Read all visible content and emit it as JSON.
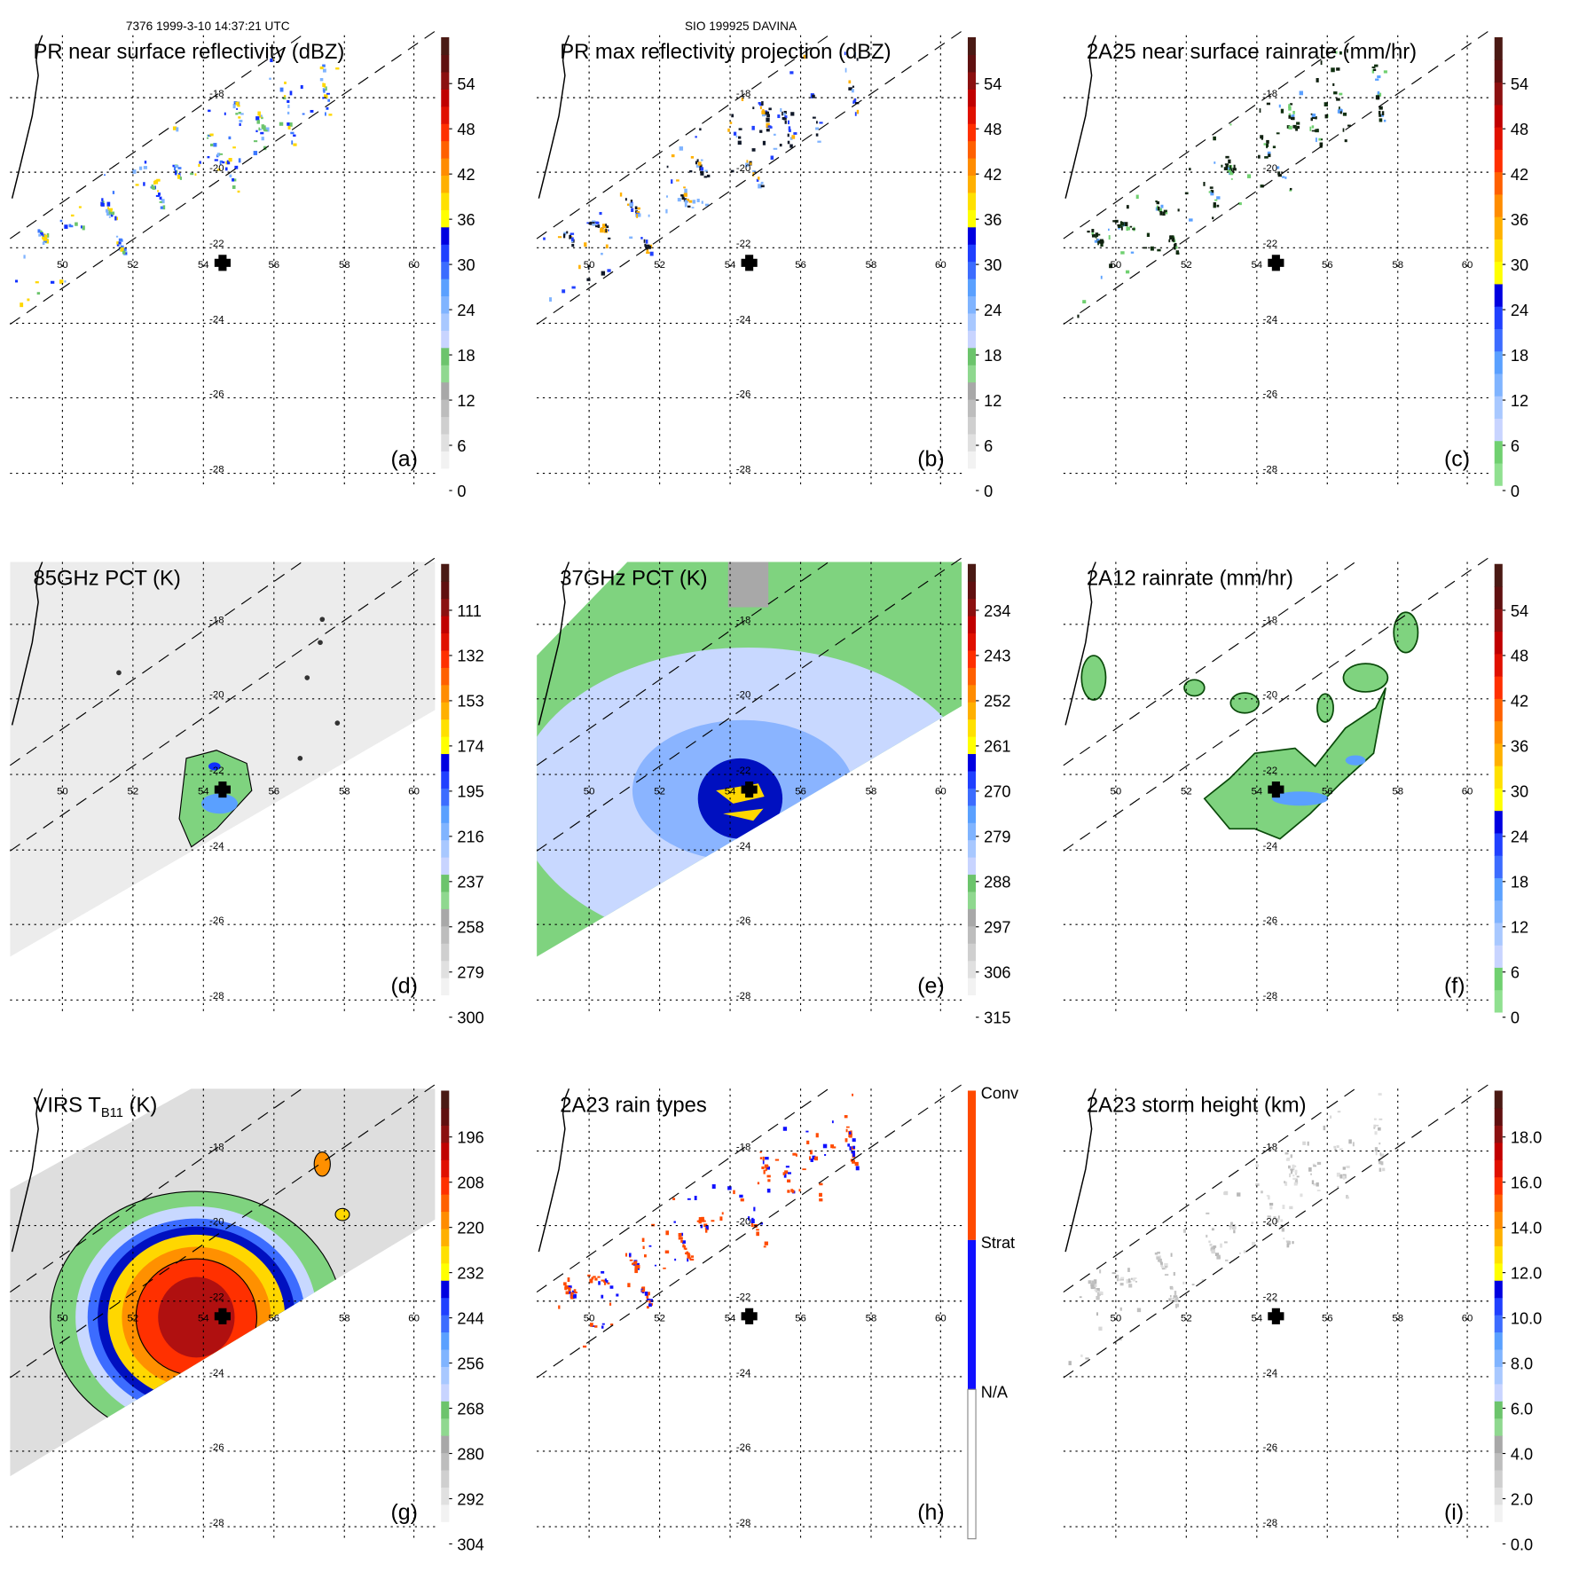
{
  "header": {
    "orbit_time": "7376 1999-3-10 14:37:21 UTC",
    "storm": "SIO 199925 DAVINA"
  },
  "lon_labels": [
    "50",
    "52",
    "54",
    "56",
    "58",
    "60"
  ],
  "lat_labels": [
    "-18",
    "-20",
    "-22",
    "-24",
    "-26",
    "-28"
  ],
  "palettes": {
    "dbz": [
      "#ffffff",
      "#f2f2f2",
      "#e0e0e0",
      "#cfcfcf",
      "#bdbdbd",
      "#a8a8a8",
      "#8fd88f",
      "#6cc46c",
      "#c8d4ff",
      "#a8c8ff",
      "#80b4ff",
      "#5aa0ff",
      "#3c6cff",
      "#2040ff",
      "#0000e0",
      "#ffff00",
      "#ffe000",
      "#ffb000",
      "#ff8c00",
      "#ff6000",
      "#ff3000",
      "#e01000",
      "#c00000",
      "#8b1010",
      "#601010",
      "#4a1a14"
    ],
    "rain": [
      "#90e090",
      "#70d070",
      "#c8d4ff",
      "#a8c8ff",
      "#80b4ff",
      "#5aa0ff",
      "#3c6cff",
      "#2040ff",
      "#0000e0",
      "#ffff00",
      "#ffe000",
      "#ffb000",
      "#ff8c00",
      "#ff6000",
      "#ff3000",
      "#e01000",
      "#c00000",
      "#8b1010",
      "#601010",
      "#4a1a14"
    ],
    "types": [
      "#ffffff",
      "#1010ff",
      "#ff4a00"
    ]
  },
  "panels": [
    {
      "letter": "(a)",
      "title": "PR near surface reflectivity (dBZ)",
      "palette": "dbz",
      "ticks": [
        "54",
        "48",
        "42",
        "36",
        "30",
        "24",
        "18",
        "12",
        "6",
        "0"
      ],
      "field": "scatter",
      "marks": [
        "#1030ff",
        "#3c78ff",
        "#80b4ff",
        "#6cc46c",
        "#ffd700"
      ]
    },
    {
      "letter": "(b)",
      "title": "PR max reflectivity projection (dBZ)",
      "palette": "dbz",
      "ticks": [
        "54",
        "48",
        "42",
        "36",
        "30",
        "24",
        "18",
        "12",
        "6",
        "0"
      ],
      "field": "scatter",
      "marks": [
        "#101828",
        "#101828",
        "#2040ff",
        "#80b4ff",
        "#ffb000"
      ]
    },
    {
      "letter": "(c)",
      "title": "2A25 near surface rainrate (mm/hr)",
      "palette": "rain",
      "ticks": [
        "54",
        "48",
        "42",
        "36",
        "30",
        "24",
        "18",
        "12",
        "6",
        "0"
      ],
      "field": "scatter",
      "marks": [
        "#102010",
        "#103010",
        "#70d070",
        "#102010",
        "#5aa0ff"
      ]
    },
    {
      "letter": "(d)",
      "title": "85GHz PCT (K)",
      "palette": "dbz",
      "ticks": [
        "111",
        "132",
        "153",
        "174",
        "195",
        "216",
        "237",
        "258",
        "279",
        "300"
      ],
      "field": "pct85"
    },
    {
      "letter": "(e)",
      "title": "37GHz PCT (K)",
      "palette": "dbz",
      "ticks": [
        "234",
        "243",
        "252",
        "261",
        "270",
        "279",
        "288",
        "297",
        "306",
        "315"
      ],
      "field": "pct37"
    },
    {
      "letter": "(f)",
      "title": "2A12 rainrate (mm/hr)",
      "palette": "rain",
      "ticks": [
        "54",
        "48",
        "42",
        "36",
        "30",
        "24",
        "18",
        "12",
        "6",
        "0"
      ],
      "field": "rain12"
    },
    {
      "letter": "(g)",
      "title_main": "VIRS T",
      "title_sub": "B11",
      "title_tail": " (K)",
      "palette": "dbz",
      "ticks": [
        "196",
        "208",
        "220",
        "232",
        "244",
        "256",
        "268",
        "280",
        "292",
        "304"
      ],
      "field": "virs"
    },
    {
      "letter": "(h)",
      "title": "2A23 rain types",
      "palette": "types",
      "ticks": [
        "Conv",
        "Strat",
        "N/A"
      ],
      "field": "scatter",
      "marks": [
        "#ff4a00",
        "#ff4a00",
        "#1010ff",
        "#ff4a00",
        "#1010ff"
      ]
    },
    {
      "letter": "(i)",
      "title": "2A23 storm height (km)",
      "palette": "dbz",
      "ticks": [
        "18.0",
        "16.0",
        "14.0",
        "12.0",
        "10.0",
        "8.0",
        "6.0",
        "4.0",
        "2.0",
        "0.0"
      ],
      "field": "scatter",
      "marks": [
        "#c8c8c8",
        "#d8d8d8",
        "#b8b8b8",
        "#e0e0e0",
        "#c0c0c0"
      ]
    }
  ]
}
